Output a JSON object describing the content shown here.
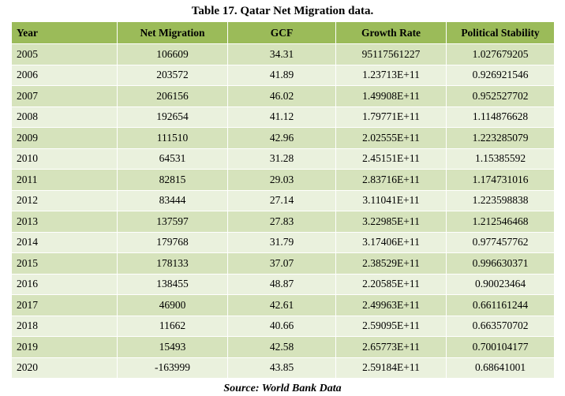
{
  "caption": "Table 17. Qatar Net Migration data.",
  "source": "Source: World Bank Data",
  "colors": {
    "header_bg": "#9bbb59",
    "row_dark": "#d6e3bc",
    "row_light": "#eaf1dd",
    "grid_line": "#ffffff"
  },
  "chart_data": {
    "type": "table",
    "title": "Table 17. Qatar Net Migration data.",
    "columns": [
      "Year",
      "Net Migration",
      "GCF",
      "Growth Rate",
      "Political Stability"
    ],
    "rows": [
      [
        "2005",
        "106609",
        "34.31",
        "95117561227",
        "1.027679205"
      ],
      [
        "2006",
        "203572",
        "41.89",
        "1.23713E+11",
        "0.926921546"
      ],
      [
        "2007",
        "206156",
        "46.02",
        "1.49908E+11",
        "0.952527702"
      ],
      [
        "2008",
        "192654",
        "41.12",
        "1.79771E+11",
        "1.114876628"
      ],
      [
        "2009",
        "111510",
        "42.96",
        "2.02555E+11",
        "1.223285079"
      ],
      [
        "2010",
        "64531",
        "31.28",
        "2.45151E+11",
        "1.15385592"
      ],
      [
        "2011",
        "82815",
        "29.03",
        "2.83716E+11",
        "1.174731016"
      ],
      [
        "2012",
        "83444",
        "27.14",
        "3.11041E+11",
        "1.223598838"
      ],
      [
        "2013",
        "137597",
        "27.83",
        "3.22985E+11",
        "1.212546468"
      ],
      [
        "2014",
        "179768",
        "31.79",
        "3.17406E+11",
        "0.977457762"
      ],
      [
        "2015",
        "178133",
        "37.07",
        "2.38529E+11",
        "0.996630371"
      ],
      [
        "2016",
        "138455",
        "48.87",
        "2.20585E+11",
        "0.90023464"
      ],
      [
        "2017",
        "46900",
        "42.61",
        "2.49963E+11",
        "0.661161244"
      ],
      [
        "2018",
        "11662",
        "40.66",
        "2.59095E+11",
        "0.663570702"
      ],
      [
        "2019",
        "15493",
        "42.58",
        "2.65773E+11",
        "0.700104177"
      ],
      [
        "2020",
        "-163999",
        "43.85",
        "2.59184E+11",
        "0.68641001"
      ]
    ]
  }
}
